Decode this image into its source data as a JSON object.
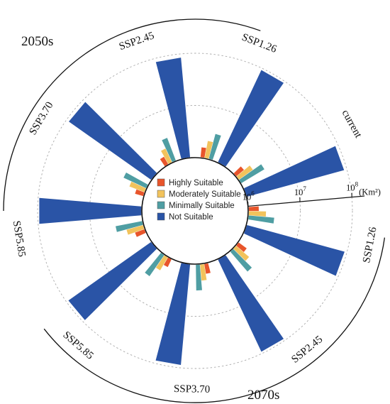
{
  "chart_data": {
    "type": "bar",
    "subtype": "radial-grouped-bar",
    "title": "",
    "scale": "log",
    "unit": "(Km²)",
    "axis_ticks": [
      {
        "value": 1000000,
        "base": "10",
        "exp": "6"
      },
      {
        "value": 10000000,
        "base": "10",
        "exp": "7"
      },
      {
        "value": 100000000,
        "base": "10",
        "exp": "8"
      }
    ],
    "axis_range": [
      1000000,
      100000000
    ],
    "periods": [
      {
        "name": "2050s",
        "scenarios": [
          "SSP1.26",
          "SSP2.45",
          "SSP3.70",
          "SSP5.85"
        ]
      },
      {
        "name": "2070s",
        "scenarios": [
          "SSP5.85",
          "SSP3.70",
          "SSP2.45",
          "SSP1.26"
        ]
      }
    ],
    "categories": [
      "current",
      "SSP1.26",
      "SSP2.45",
      "SSP3.70",
      "SSP5.85",
      "SSP5.85",
      "SSP3.70",
      "SSP2.45",
      "SSP1.26"
    ],
    "category_groups": [
      "current",
      "2050s",
      "2050s",
      "2050s",
      "2050s",
      "2070s",
      "2070s",
      "2070s",
      "2070s"
    ],
    "series": [
      {
        "name": "Highly Suitable",
        "color": "#e8552b",
        "values": [
          1600000,
          1600000,
          1500000,
          1500000,
          1600000,
          1500000,
          1600000,
          1600000,
          1600000
        ]
      },
      {
        "name": "Moderately Suitable",
        "color": "#f2c35c",
        "values": [
          2200000,
          2200000,
          2000000,
          2100000,
          2200000,
          2000000,
          2100000,
          2200000,
          2200000
        ]
      },
      {
        "name": "Minimally Suitable",
        "color": "#4f9ea3",
        "values": [
          3400000,
          3200000,
          3000000,
          3100000,
          3400000,
          3200000,
          3200000,
          3300000,
          3200000
        ]
      },
      {
        "name": "Not Suitable",
        "color": "#2a54a6",
        "values": [
          88000000,
          92000000,
          85000000,
          88000000,
          95000000,
          90000000,
          88000000,
          92000000,
          90000000
        ]
      }
    ]
  }
}
